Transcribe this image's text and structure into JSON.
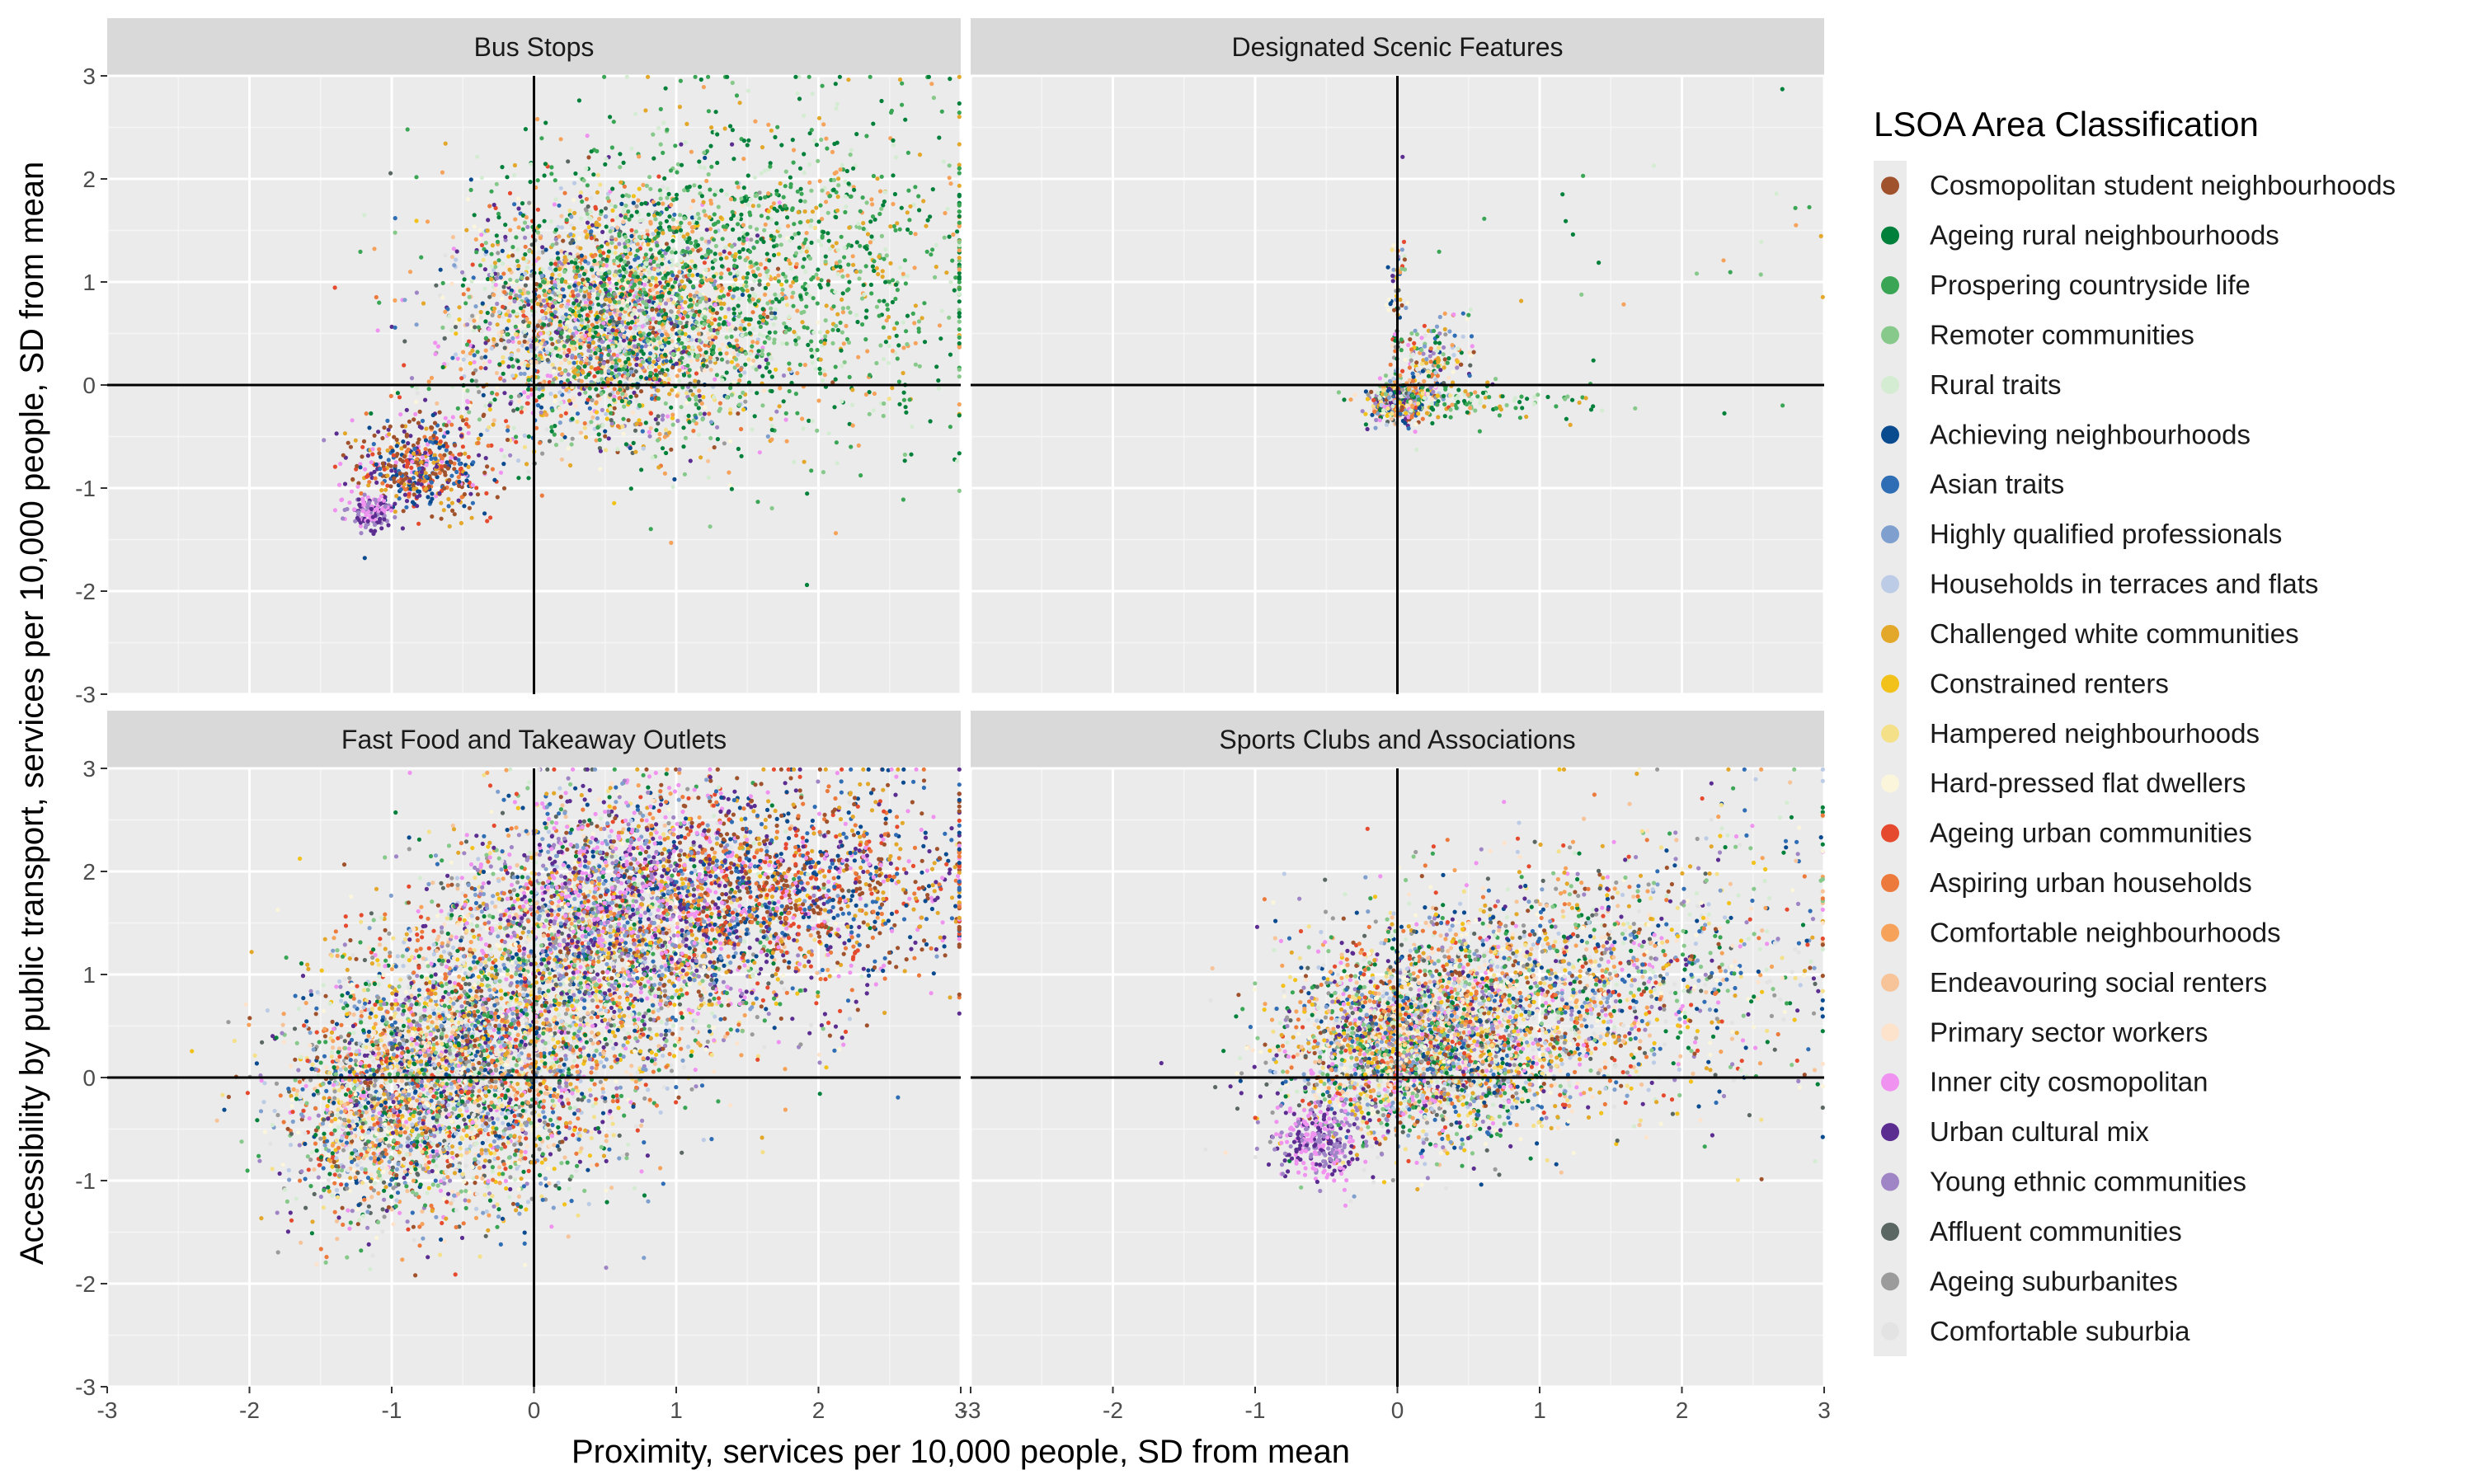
{
  "chart_data": {
    "type": "scatter",
    "xlabel": "Proximity, services per 10,000 people, SD from mean",
    "ylabel": "Accessibility by public transport, services per 10,000 people, SD from mean",
    "xlim": [
      -3,
      3
    ],
    "ylim": [
      -3,
      3
    ],
    "x_ticks": [
      "-3",
      "-2",
      "-1",
      "0",
      "1",
      "2",
      "3"
    ],
    "y_ticks": [
      "-3",
      "-2",
      "-1",
      "0",
      "1",
      "2",
      "3"
    ],
    "grid": true,
    "reference_lines": {
      "x": 0,
      "y": 0
    },
    "legend": {
      "title": "LSOA Area Classification",
      "placement": "right",
      "entries": [
        {
          "name": "Cosmopolitan student neighbourhoods",
          "color": "#a0522d"
        },
        {
          "name": "Ageing rural neighbourhoods",
          "color": "#00803a"
        },
        {
          "name": "Prospering countryside life",
          "color": "#3aa655"
        },
        {
          "name": "Remoter communities",
          "color": "#86c98a"
        },
        {
          "name": "Rural traits",
          "color": "#d4ecd2"
        },
        {
          "name": "Achieving neighbourhoods",
          "color": "#0a4a8f"
        },
        {
          "name": "Asian traits",
          "color": "#2f6db5"
        },
        {
          "name": "Highly qualified professionals",
          "color": "#7f9fcf"
        },
        {
          "name": "Households in terraces and flats",
          "color": "#bccbe6"
        },
        {
          "name": "Challenged white communities",
          "color": "#e3a82a"
        },
        {
          "name": "Constrained renters",
          "color": "#f2c21a"
        },
        {
          "name": "Hampered neighbourhoods",
          "color": "#f5e08a"
        },
        {
          "name": "Hard-pressed flat dwellers",
          "color": "#fbf5dc"
        },
        {
          "name": "Ageing urban communities",
          "color": "#e64a2e"
        },
        {
          "name": "Aspiring urban households",
          "color": "#ec7a3c"
        },
        {
          "name": "Comfortable neighbourhoods",
          "color": "#f6a25a"
        },
        {
          "name": "Endeavouring social renters",
          "color": "#f7c399"
        },
        {
          "name": "Primary sector workers",
          "color": "#fde3cc"
        },
        {
          "name": "Inner city cosmopolitan",
          "color": "#f093f0"
        },
        {
          "name": "Urban cultural mix",
          "color": "#5c2d91"
        },
        {
          "name": "Young ethnic communities",
          "color": "#9f85c5"
        },
        {
          "name": "Affluent communities",
          "color": "#5b6763"
        },
        {
          "name": "Ageing suburbanites",
          "color": "#9b9b9b"
        },
        {
          "name": "Comfortable suburbia",
          "color": "#e3e3e3"
        }
      ]
    },
    "panels": [
      {
        "title": "Bus Stops",
        "point_clouds": [
          {
            "center": [
              0.5,
              0.6
            ],
            "spread": [
              0.55,
              0.55
            ],
            "count": 2600,
            "groups": "mixed"
          },
          {
            "center": [
              1.2,
              1.0
            ],
            "spread": [
              0.8,
              0.8
            ],
            "count": 1300,
            "groups": "rural"
          },
          {
            "center": [
              -0.8,
              -0.8
            ],
            "spread": [
              0.25,
              0.25
            ],
            "count": 500,
            "groups": "urban"
          },
          {
            "center": [
              -1.15,
              -1.22
            ],
            "spread": [
              0.08,
              0.08
            ],
            "count": 140,
            "groups": "purple"
          },
          {
            "center": [
              2.3,
              1.2
            ],
            "spread": [
              0.6,
              0.9
            ],
            "count": 400,
            "groups": "rural"
          }
        ]
      },
      {
        "title": "Designated Scenic Features",
        "point_clouds": [
          {
            "center": [
              0.02,
              -0.15
            ],
            "spread": [
              0.1,
              0.1
            ],
            "count": 500,
            "groups": "mixed"
          },
          {
            "center": [
              0.25,
              0.2
            ],
            "spread": [
              0.15,
              0.25
            ],
            "count": 200,
            "groups": "mixed"
          },
          {
            "center": [
              0.6,
              -0.15
            ],
            "spread": [
              0.4,
              0.08
            ],
            "count": 100,
            "groups": "rural"
          },
          {
            "center": [
              0.0,
              0.8
            ],
            "spread": [
              0.03,
              0.4
            ],
            "count": 60,
            "groups": "mixed"
          },
          {
            "center": [
              1.8,
              0.9
            ],
            "spread": [
              0.9,
              0.9
            ],
            "count": 35,
            "groups": "rural"
          }
        ]
      },
      {
        "title": "Fast Food and Takeaway Outlets",
        "point_clouds": [
          {
            "center": [
              -0.5,
              0.1
            ],
            "spread": [
              0.55,
              0.65
            ],
            "count": 3200,
            "groups": "mixed"
          },
          {
            "center": [
              0.6,
              1.3
            ],
            "spread": [
              0.65,
              0.65
            ],
            "count": 2800,
            "groups": "mixed"
          },
          {
            "center": [
              1.8,
              1.9
            ],
            "spread": [
              0.7,
              0.5
            ],
            "count": 1400,
            "groups": "urban"
          },
          {
            "center": [
              0.5,
              1.8
            ],
            "spread": [
              0.45,
              0.5
            ],
            "count": 500,
            "groups": "pink"
          },
          {
            "center": [
              -1.2,
              -0.5
            ],
            "spread": [
              0.3,
              0.5
            ],
            "count": 600,
            "groups": "mixed"
          }
        ]
      },
      {
        "title": "Sports Clubs and Associations",
        "point_clouds": [
          {
            "center": [
              0.1,
              0.3
            ],
            "spread": [
              0.45,
              0.45
            ],
            "count": 2600,
            "groups": "mixed"
          },
          {
            "center": [
              1.0,
              0.8
            ],
            "spread": [
              0.65,
              0.6
            ],
            "count": 1600,
            "groups": "mixed"
          },
          {
            "center": [
              -0.55,
              -0.6
            ],
            "spread": [
              0.15,
              0.2
            ],
            "count": 300,
            "groups": "purple"
          },
          {
            "center": [
              2.2,
              1.3
            ],
            "spread": [
              0.55,
              0.8
            ],
            "count": 400,
            "groups": "mixed"
          }
        ]
      }
    ]
  }
}
